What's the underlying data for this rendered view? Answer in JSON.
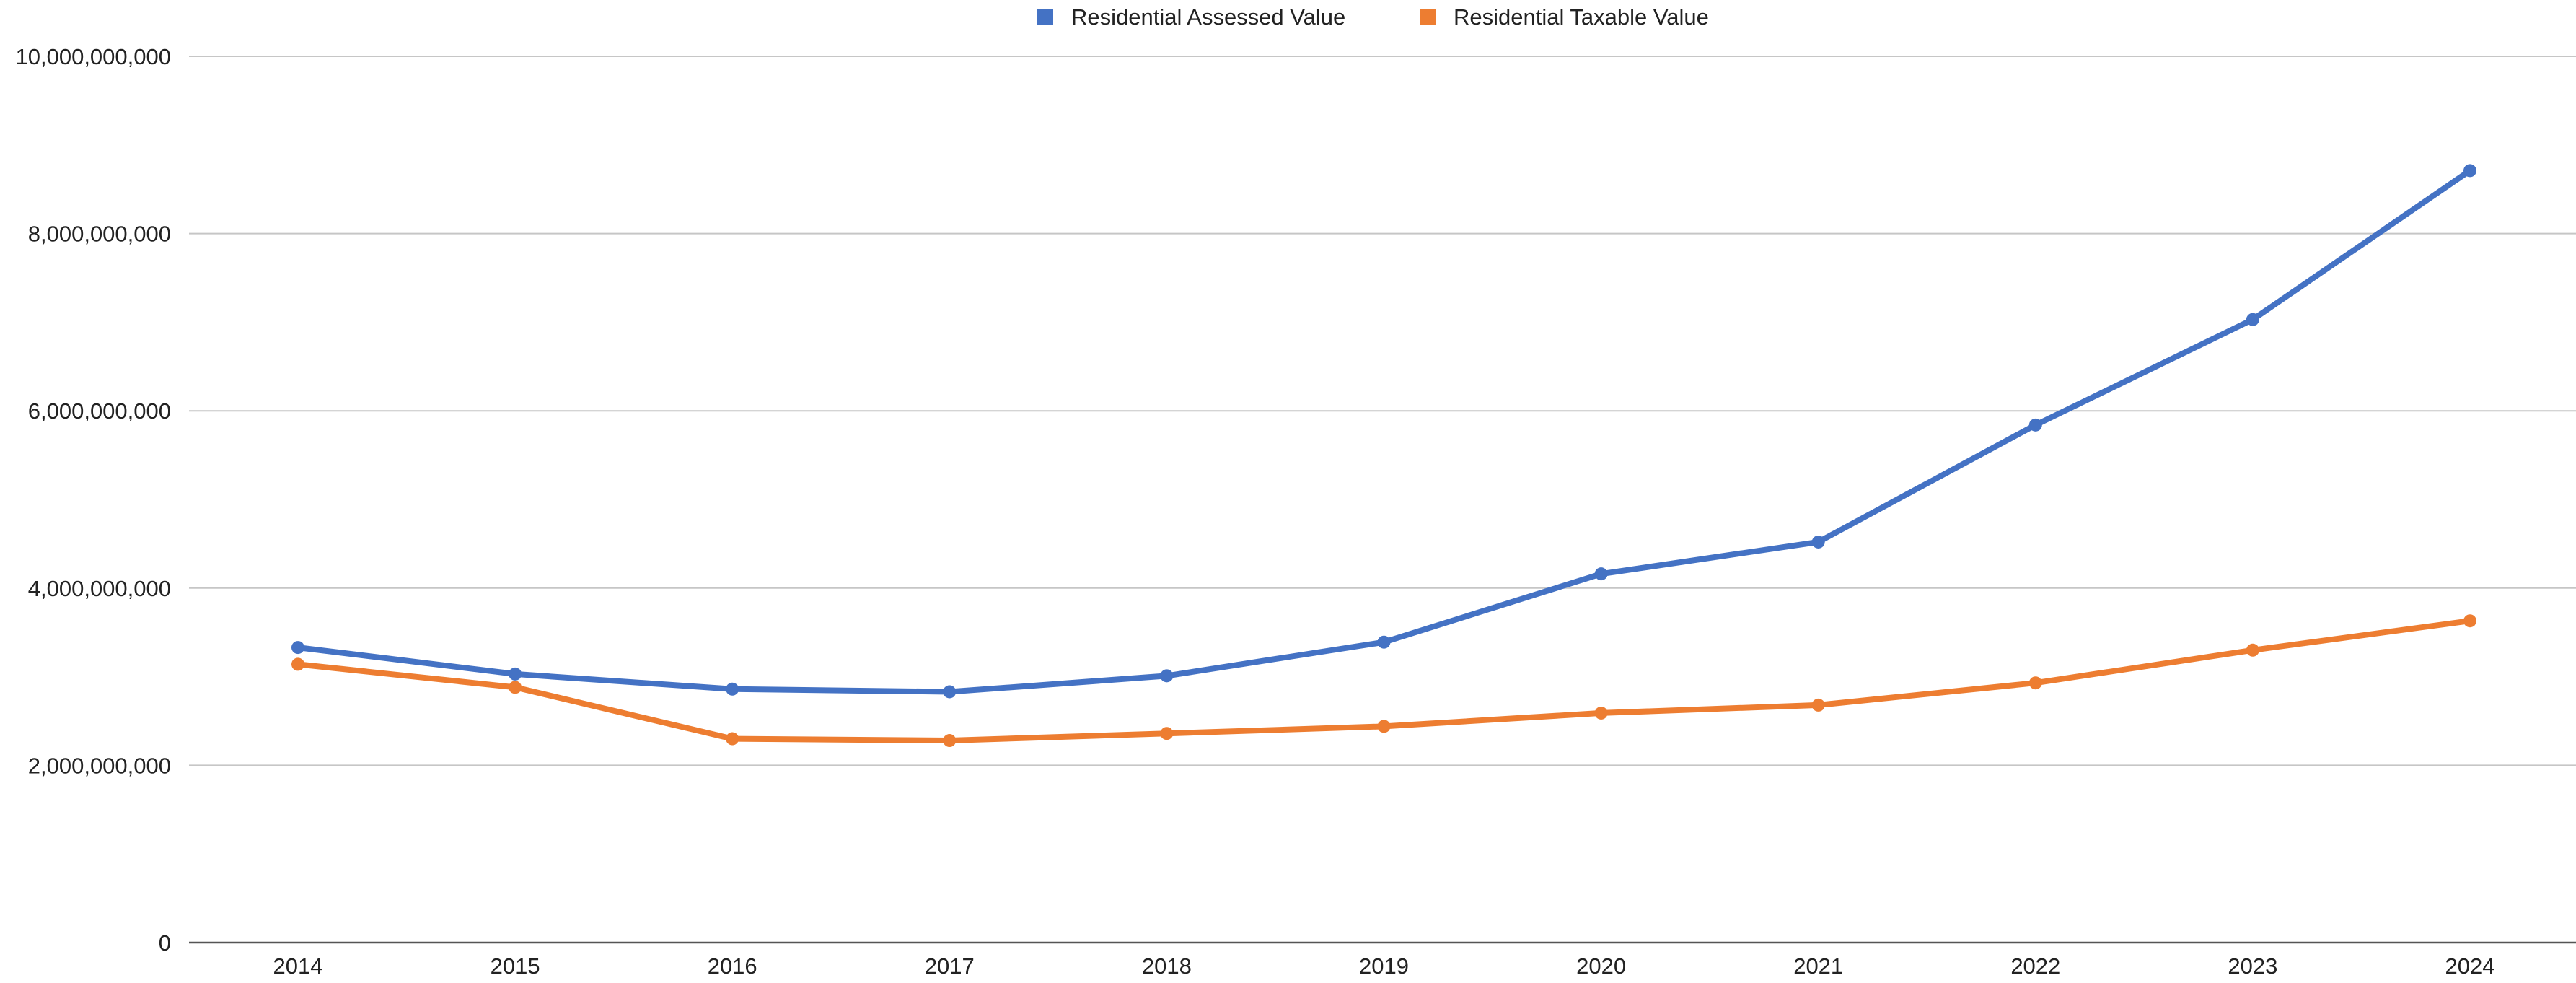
{
  "chart_data": {
    "type": "line",
    "title": "",
    "xlabel": "",
    "ylabel": "",
    "categories": [
      "2014",
      "2015",
      "2016",
      "2017",
      "2018",
      "2019",
      "2020",
      "2021",
      "2022",
      "2023",
      "2024"
    ],
    "ylim": [
      0,
      10000000000
    ],
    "yticks": [
      "0",
      "2,000,000,000",
      "4,000,000,000",
      "6,000,000,000",
      "8,000,000,000",
      "10,000,000,000"
    ],
    "grid": true,
    "legend_position": "top-center",
    "series": [
      {
        "name": "Residential Assessed Value",
        "color": "#4472c4",
        "values": [
          3330000000,
          3030000000,
          2860000000,
          2830000000,
          3010000000,
          3390000000,
          4160000000,
          4520000000,
          5840000000,
          7030000000,
          8710000000
        ]
      },
      {
        "name": "Residential Taxable Value",
        "color": "#ed7d31",
        "values": [
          3140000000,
          2880000000,
          2300000000,
          2280000000,
          2360000000,
          2440000000,
          2590000000,
          2680000000,
          2930000000,
          3300000000,
          3630000000
        ]
      }
    ]
  }
}
